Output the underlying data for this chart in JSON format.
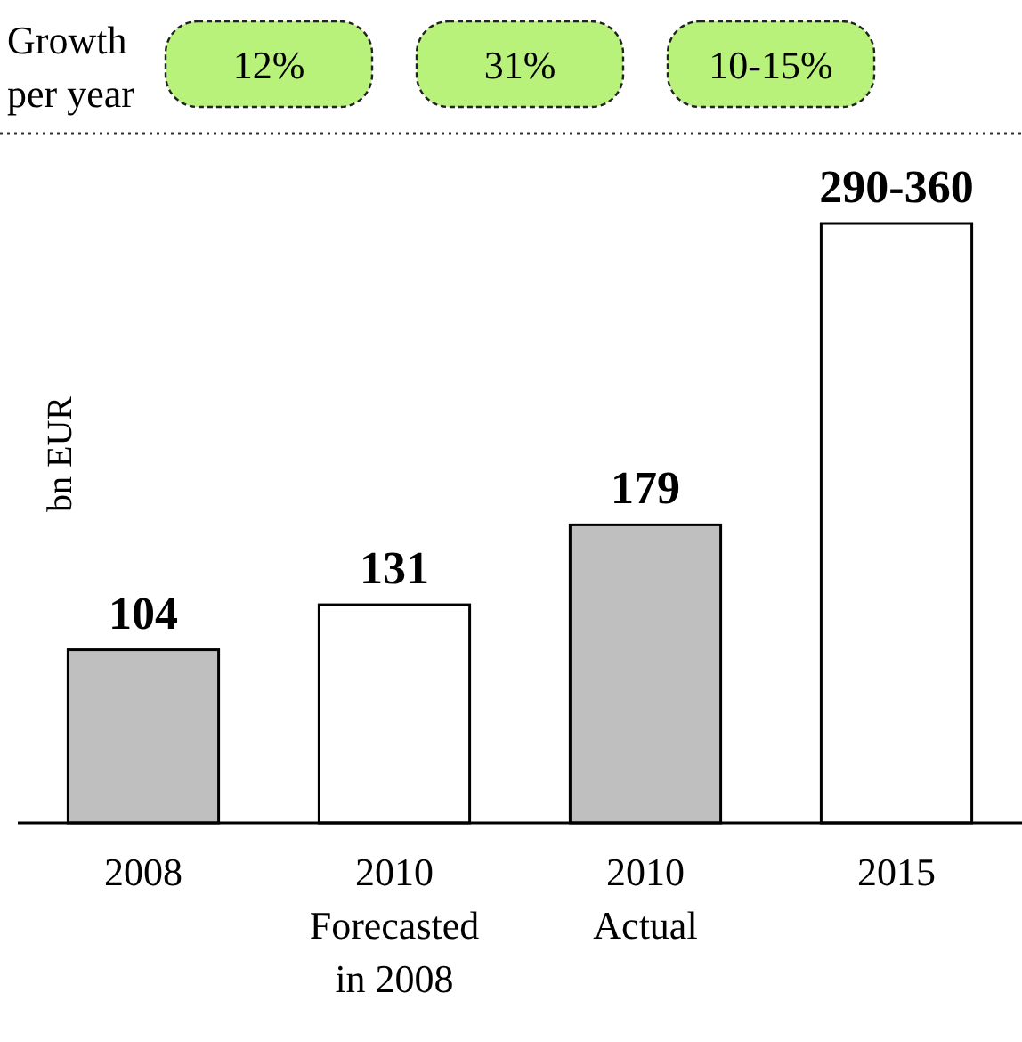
{
  "chart_data": {
    "type": "bar",
    "ylabel": "bn EUR",
    "categories": [
      "2008",
      "2010\nForecasted\nin 2008",
      "2010\nActual",
      "2015"
    ],
    "values": [
      104,
      131,
      179,
      360
    ],
    "colors": [
      "#bfbfbf",
      "#ffffff",
      "#bfbfbf",
      "#ffffff"
    ],
    "value_labels": [
      "104",
      "131",
      "179",
      "290-360"
    ],
    "annotations": [
      "Growth per year",
      "12%",
      "31%",
      "10-15%"
    ]
  }
}
